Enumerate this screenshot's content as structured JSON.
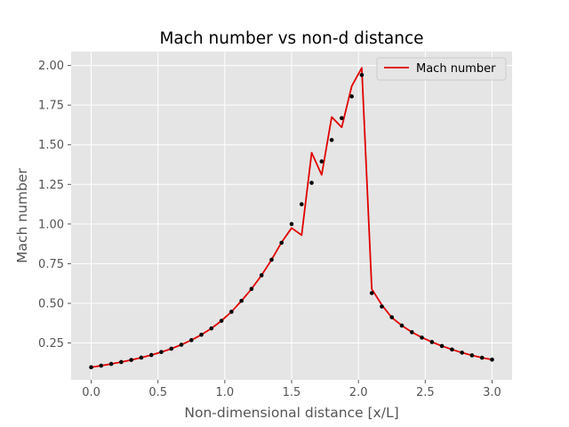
{
  "chart_data": {
    "type": "line",
    "title": "Mach number vs non-d distance",
    "xlabel": "Non-dimensional distance [x/L]",
    "ylabel": "Mach number",
    "xlim": [
      -0.15,
      3.15
    ],
    "ylim": [
      0.0175,
      2.0875
    ],
    "x_ticks": [
      0.0,
      0.5,
      1.0,
      1.5,
      2.0,
      2.5,
      3.0
    ],
    "x_tick_labels": [
      "0.0",
      "0.5",
      "1.0",
      "1.5",
      "2.0",
      "2.5",
      "3.0"
    ],
    "y_ticks": [
      0.25,
      0.5,
      0.75,
      1.0,
      1.25,
      1.5,
      1.75,
      2.0
    ],
    "y_tick_labels": [
      "0.25",
      "0.50",
      "0.75",
      "1.00",
      "1.25",
      "1.50",
      "1.75",
      "2.00"
    ],
    "grid": true,
    "legend_position": "top-right",
    "colors": {
      "background": "#e5e5e5",
      "grid": "#ffffff",
      "line": "#e00000",
      "points": "#000000"
    },
    "series": [
      {
        "name": "Mach number",
        "style": "line",
        "x": [
          0.0,
          0.075,
          0.15,
          0.225,
          0.3,
          0.375,
          0.45,
          0.525,
          0.6,
          0.675,
          0.75,
          0.825,
          0.9,
          0.975,
          1.05,
          1.125,
          1.2,
          1.275,
          1.35,
          1.425,
          1.5,
          1.575,
          1.65,
          1.725,
          1.8,
          1.875,
          1.95,
          2.025,
          2.1,
          2.175,
          2.25,
          2.325,
          2.4,
          2.475,
          2.55,
          2.625,
          2.7,
          2.775,
          2.85,
          2.925,
          3.0
        ],
        "y": [
          0.097,
          0.107,
          0.118,
          0.13,
          0.143,
          0.158,
          0.174,
          0.193,
          0.214,
          0.239,
          0.268,
          0.302,
          0.342,
          0.39,
          0.447,
          0.516,
          0.591,
          0.677,
          0.775,
          0.885,
          0.975,
          0.93,
          1.45,
          1.31,
          1.675,
          1.61,
          1.87,
          1.985,
          0.59,
          0.49,
          0.41,
          0.36,
          0.318,
          0.285,
          0.256,
          0.231,
          0.209,
          0.189,
          0.172,
          0.157,
          0.145
        ]
      },
      {
        "style": "points",
        "x": [
          0.0,
          0.075,
          0.15,
          0.225,
          0.3,
          0.375,
          0.45,
          0.525,
          0.6,
          0.675,
          0.75,
          0.825,
          0.9,
          0.975,
          1.05,
          1.125,
          1.2,
          1.275,
          1.35,
          1.425,
          1.5,
          1.575,
          1.65,
          1.725,
          1.8,
          1.875,
          1.95,
          2.025,
          2.1,
          2.175,
          2.25,
          2.325,
          2.4,
          2.475,
          2.55,
          2.625,
          2.7,
          2.775,
          2.85,
          2.925,
          3.0
        ],
        "y": [
          0.097,
          0.107,
          0.118,
          0.13,
          0.143,
          0.158,
          0.174,
          0.193,
          0.214,
          0.239,
          0.268,
          0.302,
          0.342,
          0.39,
          0.447,
          0.516,
          0.591,
          0.677,
          0.775,
          0.882,
          1.0,
          1.125,
          1.26,
          1.395,
          1.53,
          1.668,
          1.805,
          1.94,
          0.565,
          0.48,
          0.412,
          0.36,
          0.318,
          0.284,
          0.256,
          0.231,
          0.209,
          0.189,
          0.172,
          0.157,
          0.145
        ]
      }
    ]
  }
}
